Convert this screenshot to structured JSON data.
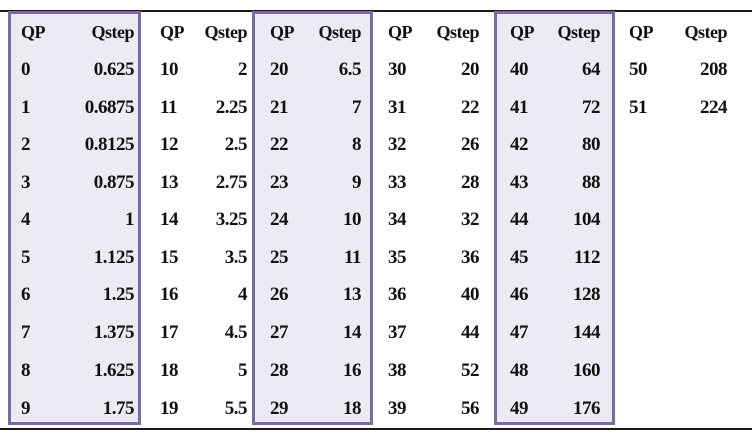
{
  "table": {
    "header_qp": "QP",
    "header_qstep": "Qstep",
    "groups": [
      {
        "highlight": true,
        "rows": [
          [
            "0",
            "0.625"
          ],
          [
            "1",
            "0.6875"
          ],
          [
            "2",
            "0.8125"
          ],
          [
            "3",
            "0.875"
          ],
          [
            "4",
            "1"
          ],
          [
            "5",
            "1.125"
          ],
          [
            "6",
            "1.25"
          ],
          [
            "7",
            "1.375"
          ],
          [
            "8",
            "1.625"
          ],
          [
            "9",
            "1.75"
          ]
        ]
      },
      {
        "highlight": false,
        "rows": [
          [
            "10",
            "2"
          ],
          [
            "11",
            "2.25"
          ],
          [
            "12",
            "2.5"
          ],
          [
            "13",
            "2.75"
          ],
          [
            "14",
            "3.25"
          ],
          [
            "15",
            "3.5"
          ],
          [
            "16",
            "4"
          ],
          [
            "17",
            "4.5"
          ],
          [
            "18",
            "5"
          ],
          [
            "19",
            "5.5"
          ]
        ]
      },
      {
        "highlight": true,
        "rows": [
          [
            "20",
            "6.5"
          ],
          [
            "21",
            "7"
          ],
          [
            "22",
            "8"
          ],
          [
            "23",
            "9"
          ],
          [
            "24",
            "10"
          ],
          [
            "25",
            "11"
          ],
          [
            "26",
            "13"
          ],
          [
            "27",
            "14"
          ],
          [
            "28",
            "16"
          ],
          [
            "29",
            "18"
          ]
        ]
      },
      {
        "highlight": false,
        "rows": [
          [
            "30",
            "20"
          ],
          [
            "31",
            "22"
          ],
          [
            "32",
            "26"
          ],
          [
            "33",
            "28"
          ],
          [
            "34",
            "32"
          ],
          [
            "35",
            "36"
          ],
          [
            "36",
            "40"
          ],
          [
            "37",
            "44"
          ],
          [
            "38",
            "52"
          ],
          [
            "39",
            "56"
          ]
        ]
      },
      {
        "highlight": true,
        "rows": [
          [
            "40",
            "64"
          ],
          [
            "41",
            "72"
          ],
          [
            "42",
            "80"
          ],
          [
            "43",
            "88"
          ],
          [
            "44",
            "104"
          ],
          [
            "45",
            "112"
          ],
          [
            "46",
            "128"
          ],
          [
            "47",
            "144"
          ],
          [
            "48",
            "160"
          ],
          [
            "49",
            "176"
          ]
        ]
      },
      {
        "highlight": false,
        "rows": [
          [
            "50",
            "208"
          ],
          [
            "51",
            "224"
          ]
        ]
      }
    ],
    "colors": {
      "highlight_fill": "#eceaf2",
      "highlight_border": "#7b6aa6",
      "rule": "#1a1a1a"
    }
  }
}
